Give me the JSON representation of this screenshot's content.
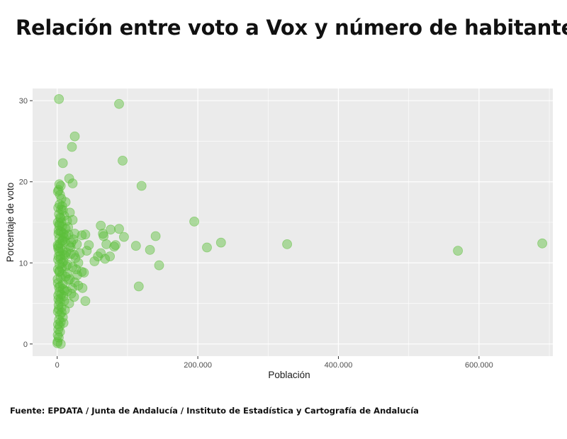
{
  "title": "Relación entre voto a Vox y número de habitantes",
  "source": "Fuente: EPDATA / Junta de Andalucía / Instituto de Estadística y Cartografía de Andalucía",
  "colors": {
    "panel_bg": "#ebebeb",
    "grid": "#ffffff",
    "point": "#5cbf3a"
  },
  "chart_data": {
    "type": "scatter",
    "title": "Relación entre voto a Vox y número de habitantes",
    "xlabel": "Población",
    "ylabel": "Porcentaje de voto",
    "xlim": [
      -35000,
      705000
    ],
    "ylim": [
      -1.5,
      31.5
    ],
    "x_ticks": [
      0,
      200000,
      400000,
      600000
    ],
    "x_tick_labels": [
      "0",
      "200.000",
      "400.000",
      "600.000"
    ],
    "y_ticks": [
      0,
      10,
      20,
      30
    ],
    "y_tick_labels": [
      "0",
      "10",
      "20",
      "30"
    ],
    "grid": true,
    "legend": "none",
    "points": [
      [
        2500,
        30.2
      ],
      [
        88000,
        29.6
      ],
      [
        25000,
        25.6
      ],
      [
        21000,
        24.3
      ],
      [
        93000,
        22.6
      ],
      [
        8000,
        22.3
      ],
      [
        17000,
        20.4
      ],
      [
        3000,
        19.7
      ],
      [
        22000,
        19.8
      ],
      [
        5000,
        19.5
      ],
      [
        120000,
        19.5
      ],
      [
        1000,
        18.8
      ],
      [
        2000,
        19.0
      ],
      [
        4000,
        18.4
      ],
      [
        6000,
        17.9
      ],
      [
        12000,
        17.5
      ],
      [
        3500,
        17.2
      ],
      [
        1500,
        16.8
      ],
      [
        8000,
        16.5
      ],
      [
        18000,
        16.2
      ],
      [
        2500,
        16.0
      ],
      [
        10000,
        15.8
      ],
      [
        5000,
        15.5
      ],
      [
        14000,
        15.2
      ],
      [
        22000,
        15.3
      ],
      [
        1000,
        15.0
      ],
      [
        3000,
        14.8
      ],
      [
        7000,
        14.5
      ],
      [
        12000,
        14.2
      ],
      [
        195000,
        15.1
      ],
      [
        62000,
        14.6
      ],
      [
        88000,
        14.2
      ],
      [
        76000,
        14.1
      ],
      [
        2000,
        14.0
      ],
      [
        6000,
        13.8
      ],
      [
        9000,
        13.6
      ],
      [
        16000,
        13.5
      ],
      [
        25000,
        13.6
      ],
      [
        35000,
        13.4
      ],
      [
        40000,
        13.5
      ],
      [
        65000,
        13.6
      ],
      [
        66000,
        13.3
      ],
      [
        95000,
        13.2
      ],
      [
        140000,
        13.3
      ],
      [
        3000,
        13.0
      ],
      [
        8000,
        12.8
      ],
      [
        11000,
        12.6
      ],
      [
        20000,
        12.5
      ],
      [
        28000,
        12.3
      ],
      [
        45000,
        12.2
      ],
      [
        70000,
        12.3
      ],
      [
        83000,
        12.2
      ],
      [
        112000,
        12.1
      ],
      [
        213000,
        11.9
      ],
      [
        233000,
        12.5
      ],
      [
        327000,
        12.3
      ],
      [
        570000,
        11.5
      ],
      [
        690000,
        12.4
      ],
      [
        1500,
        12.0
      ],
      [
        4500,
        11.8
      ],
      [
        7500,
        11.5
      ],
      [
        13000,
        11.3
      ],
      [
        19000,
        11.1
      ],
      [
        24000,
        11.0
      ],
      [
        32000,
        11.2
      ],
      [
        42000,
        11.5
      ],
      [
        62000,
        11.2
      ],
      [
        75000,
        10.8
      ],
      [
        81000,
        12.0
      ],
      [
        132000,
        11.6
      ],
      [
        58000,
        10.8
      ],
      [
        68000,
        10.5
      ],
      [
        53000,
        10.2
      ],
      [
        145000,
        9.7
      ],
      [
        30000,
        10.0
      ],
      [
        2000,
        10.8
      ],
      [
        5000,
        10.5
      ],
      [
        9000,
        10.2
      ],
      [
        15000,
        9.8
      ],
      [
        22000,
        9.5
      ],
      [
        27000,
        9.2
      ],
      [
        35000,
        8.9
      ],
      [
        38000,
        8.8
      ],
      [
        3000,
        9.0
      ],
      [
        7000,
        8.6
      ],
      [
        12000,
        8.3
      ],
      [
        18000,
        8.0
      ],
      [
        25000,
        7.6
      ],
      [
        30000,
        7.2
      ],
      [
        116000,
        7.1
      ],
      [
        36000,
        6.9
      ],
      [
        1000,
        7.5
      ],
      [
        4000,
        7.1
      ],
      [
        8000,
        6.8
      ],
      [
        14000,
        6.5
      ],
      [
        20000,
        6.2
      ],
      [
        24000,
        5.8
      ],
      [
        1500,
        6.0
      ],
      [
        5000,
        5.6
      ],
      [
        10000,
        5.3
      ],
      [
        40000,
        5.3
      ],
      [
        17000,
        5.0
      ],
      [
        2000,
        4.8
      ],
      [
        6000,
        4.5
      ],
      [
        11000,
        4.2
      ],
      [
        1000,
        4.0
      ],
      [
        4000,
        3.6
      ],
      [
        8000,
        3.3
      ],
      [
        2500,
        3.0
      ],
      [
        5000,
        2.7
      ],
      [
        1200,
        2.4
      ],
      [
        3500,
        2.2
      ],
      [
        9000,
        2.6
      ],
      [
        1500,
        1.8
      ],
      [
        4000,
        1.5
      ],
      [
        800,
        1.1
      ],
      [
        2200,
        0.8
      ],
      [
        600,
        0.3
      ],
      [
        5000,
        0.0
      ],
      [
        300,
        0.1
      ],
      [
        13000,
        9.6
      ],
      [
        16000,
        7.9
      ],
      [
        19000,
        11.9
      ],
      [
        23000,
        12.9
      ],
      [
        26000,
        10.6
      ],
      [
        6500,
        9.4
      ],
      [
        9500,
        13.1
      ],
      [
        11500,
        10.9
      ],
      [
        14500,
        8.7
      ],
      [
        21500,
        6.9
      ],
      [
        2800,
        11.4
      ],
      [
        3800,
        12.4
      ],
      [
        4800,
        8.2
      ],
      [
        7200,
        10.0
      ],
      [
        8800,
        5.9
      ],
      [
        10500,
        6.6
      ],
      [
        12500,
        13.3
      ],
      [
        15500,
        14.4
      ],
      [
        17500,
        12.1
      ],
      [
        28500,
        8.5
      ],
      [
        1800,
        13.6
      ],
      [
        3200,
        6.4
      ],
      [
        5800,
        15.0
      ],
      [
        6800,
        12.7
      ],
      [
        9800,
        11.0
      ],
      [
        1100,
        9.2
      ],
      [
        2400,
        7.0
      ],
      [
        3600,
        5.2
      ],
      [
        4400,
        13.9
      ],
      [
        5400,
        16.6
      ],
      [
        700,
        8.0
      ],
      [
        1300,
        10.4
      ],
      [
        2700,
        14.6
      ],
      [
        6200,
        3.9
      ],
      [
        7800,
        7.4
      ],
      [
        900,
        12.2
      ],
      [
        1700,
        5.5
      ],
      [
        3300,
        9.8
      ],
      [
        4600,
        10.9
      ],
      [
        5600,
        6.1
      ],
      [
        1400,
        11.8
      ],
      [
        2100,
        4.3
      ],
      [
        2900,
        8.9
      ],
      [
        3900,
        15.6
      ],
      [
        7000,
        17.0
      ]
    ]
  }
}
